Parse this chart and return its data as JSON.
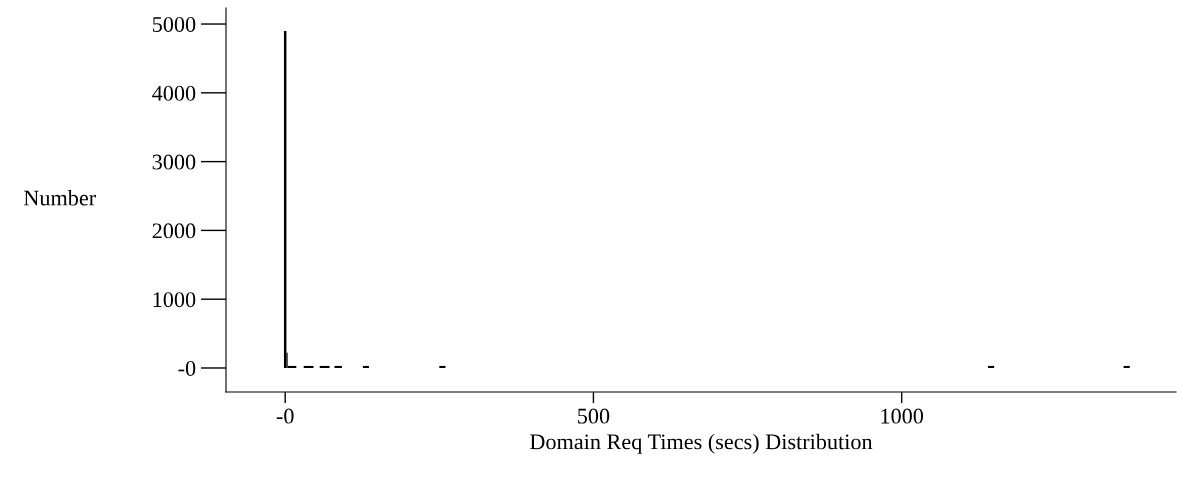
{
  "chart_data": {
    "type": "histogram",
    "xlabel": "Domain Req Times (secs) Distribution",
    "ylabel": "Number",
    "bins": [
      -2,
      2,
      4,
      18,
      30,
      46,
      56,
      72,
      80,
      92,
      126,
      136,
      250,
      260,
      1140,
      1150,
      1360,
      1370
    ],
    "values": [
      4900,
      220,
      30,
      0,
      30,
      0,
      30,
      0,
      30,
      0,
      30,
      0,
      30,
      0,
      30,
      0,
      30
    ],
    "color": "#000000",
    "xlim": [
      -96,
      1445
    ],
    "ylim": [
      -349,
      5233
    ],
    "xticks": [
      {
        "value": 0,
        "label": "-0"
      },
      500,
      1000
    ],
    "yticks": [
      {
        "value": 0,
        "label": "-0"
      },
      1000,
      2000,
      3000,
      4000,
      5000
    ],
    "grid": false,
    "legend": false
  }
}
